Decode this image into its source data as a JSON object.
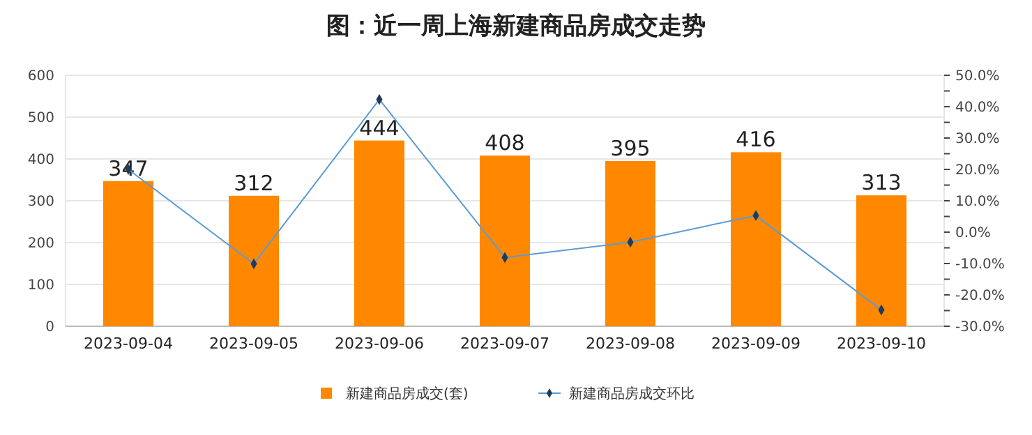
{
  "chart_data": {
    "type": "bar",
    "title": "图：近一周上海新建商品房成交走势",
    "categories": [
      "2023-09-04",
      "2023-09-05",
      "2023-09-06",
      "2023-09-07",
      "2023-09-08",
      "2023-09-09",
      "2023-09-10"
    ],
    "series": [
      {
        "name": "新建商品房成交(套)",
        "color": "#ff8800",
        "values": [
          347,
          312,
          444,
          408,
          395,
          416,
          313
        ],
        "value_labels": [
          "347",
          "312",
          "444",
          "408",
          "395",
          "416",
          "313"
        ]
      },
      {
        "name": "新建商品房成交环比",
        "type": "line",
        "axis": "y2",
        "color": "#5b9bd5",
        "marker": "diamond",
        "values": [
          20,
          -10.1,
          42.3,
          -8.1,
          -3.2,
          5.3,
          -24.8
        ]
      }
    ],
    "ylim": [
      0,
      600
    ],
    "yticks": [
      0,
      100,
      200,
      300,
      400,
      500,
      600
    ],
    "y2lim": [
      -30,
      50
    ],
    "y2ticks": [
      {
        "value": -30,
        "label": "-30.0%"
      },
      {
        "value": -25,
        "label": null
      },
      {
        "value": -20,
        "label": "-20.0%"
      },
      {
        "value": -15,
        "label": null
      },
      {
        "value": -10,
        "label": "-10.0%"
      },
      {
        "value": -5,
        "label": null
      },
      {
        "value": 0,
        "label": "0.0%"
      },
      {
        "value": 5,
        "label": null
      },
      {
        "value": 10,
        "label": "10.0%"
      },
      {
        "value": 15,
        "label": null
      },
      {
        "value": 20,
        "label": "20.0%"
      },
      {
        "value": 25,
        "label": null
      },
      {
        "value": 30,
        "label": "30.0%"
      },
      {
        "value": 35,
        "label": null
      },
      {
        "value": 40,
        "label": "40.0%"
      },
      {
        "value": 45,
        "label": null
      },
      {
        "value": 50,
        "label": "50.0%"
      }
    ],
    "grid": "y",
    "legend": "bottom"
  }
}
